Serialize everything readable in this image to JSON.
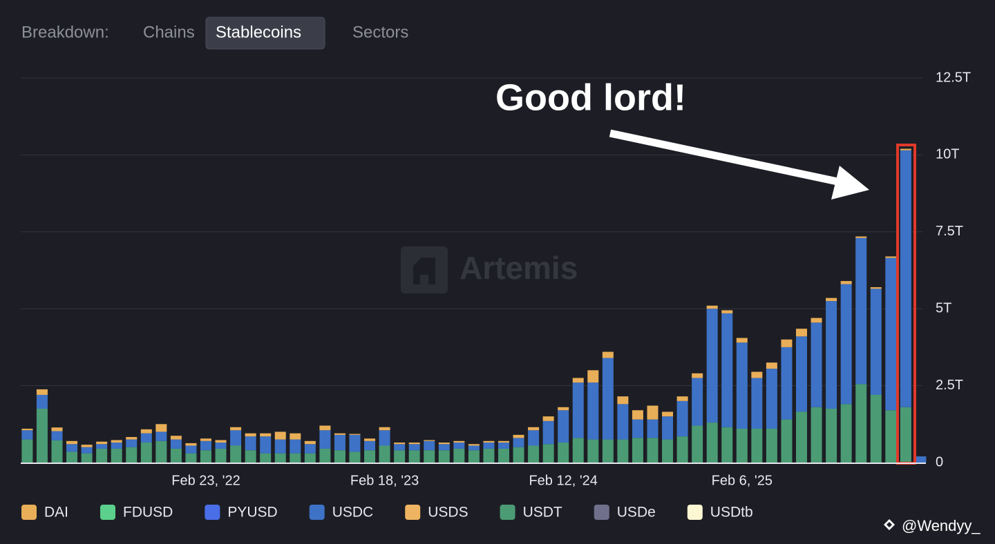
{
  "breakdown": {
    "label": "Breakdown:",
    "tabs": [
      "Chains",
      "Stablecoins",
      "Sectors"
    ],
    "active": 1
  },
  "watermarks": {
    "center": "Artemis",
    "corner": "@Wendyy_"
  },
  "chart_data": {
    "type": "stacked-bar",
    "annotation": "Good lord!",
    "categories": [
      null,
      null,
      null,
      null,
      null,
      null,
      null,
      null,
      null,
      null,
      null,
      null,
      "Feb 23, '22",
      null,
      null,
      null,
      null,
      null,
      null,
      null,
      null,
      null,
      null,
      null,
      "Feb 18, '23",
      null,
      null,
      null,
      null,
      null,
      null,
      null,
      null,
      null,
      null,
      null,
      "Feb 12, '24",
      null,
      null,
      null,
      null,
      null,
      null,
      null,
      null,
      null,
      null,
      null,
      "Feb 6, '25",
      null,
      null,
      null,
      null,
      null,
      null,
      null,
      null,
      null,
      null,
      null,
      null
    ],
    "ylim": [
      0,
      12.5
    ],
    "yticks": [
      0,
      {
        "value": 2.5,
        "label": "2.5T"
      },
      {
        "value": 5,
        "label": "5T"
      },
      {
        "value": 7.5,
        "label": "7.5T"
      },
      {
        "value": 10,
        "label": "10T"
      },
      {
        "value": 12.5,
        "label": "12.5T"
      }
    ],
    "grid": true,
    "legend": "bottom",
    "series": [
      {
        "name": "DAI",
        "color": "#e9ae58",
        "values": [
          0.05,
          0.18,
          0.12,
          0.1,
          0.08,
          0.08,
          0.08,
          0.08,
          0.13,
          0.25,
          0.12,
          0.08,
          0.08,
          0.08,
          0.1,
          0.1,
          0.1,
          0.25,
          0.2,
          0.1,
          0.15,
          0.05,
          0.03,
          0.08,
          0.1,
          0.05,
          0.05,
          0.03,
          0.05,
          0.05,
          0.05,
          0.05,
          0.05,
          0.1,
          0.1,
          0.15,
          0.1,
          0.15,
          0.4,
          0.2,
          0.25,
          0.3,
          0.45,
          0.15,
          0.15,
          0.15,
          0.1,
          0.1,
          0.15,
          0.2,
          0.2,
          0.25,
          0.25,
          0.15,
          0.1,
          0.1,
          0.05,
          0.05,
          0.05,
          0.05,
          0
        ]
      },
      {
        "name": "FDUSD",
        "color": "#5bd08c",
        "values": [
          0,
          0,
          0,
          0,
          0,
          0,
          0,
          0,
          0,
          0,
          0,
          0,
          0,
          0,
          0,
          0,
          0,
          0,
          0,
          0,
          0,
          0,
          0,
          0,
          0,
          0,
          0,
          0,
          0,
          0,
          0,
          0,
          0,
          0,
          0,
          0,
          0,
          0,
          0,
          0,
          0,
          0,
          0,
          0,
          0,
          0,
          0,
          0,
          0,
          0,
          0,
          0,
          0,
          0,
          0,
          0,
          0,
          0,
          0,
          0,
          0
        ]
      },
      {
        "name": "PYUSD",
        "color": "#4a6ee8",
        "values": [
          0,
          0,
          0,
          0,
          0,
          0,
          0,
          0,
          0,
          0,
          0,
          0,
          0,
          0,
          0,
          0,
          0,
          0,
          0,
          0,
          0,
          0,
          0,
          0,
          0,
          0,
          0,
          0,
          0,
          0,
          0,
          0,
          0,
          0,
          0,
          0,
          0,
          0,
          0,
          0,
          0,
          0,
          0,
          0,
          0,
          0,
          0,
          0,
          0,
          0,
          0,
          0,
          0,
          0,
          0,
          0,
          0,
          0,
          0,
          0,
          0
        ]
      },
      {
        "name": "USDC",
        "color": "#3d72c6",
        "values": [
          0.3,
          0.45,
          0.3,
          0.25,
          0.2,
          0.15,
          0.2,
          0.25,
          0.3,
          0.3,
          0.3,
          0.25,
          0.3,
          0.2,
          0.5,
          0.45,
          0.55,
          0.45,
          0.45,
          0.3,
          0.6,
          0.5,
          0.55,
          0.3,
          0.5,
          0.2,
          0.2,
          0.3,
          0.2,
          0.2,
          0.15,
          0.2,
          0.2,
          0.3,
          0.5,
          0.75,
          1.05,
          1.8,
          1.85,
          2.65,
          1.15,
          0.6,
          0.6,
          0.75,
          1.15,
          1.55,
          3.7,
          3.7,
          2.8,
          1.65,
          1.95,
          2.35,
          2.45,
          2.75,
          3.5,
          3.9,
          4.75,
          3.45,
          4.95,
          8.35,
          0.2
        ]
      },
      {
        "name": "USDS",
        "color": "#efb462",
        "values": [
          0,
          0,
          0,
          0,
          0,
          0,
          0,
          0,
          0,
          0,
          0,
          0,
          0,
          0,
          0,
          0,
          0,
          0,
          0,
          0,
          0,
          0,
          0,
          0,
          0,
          0,
          0,
          0,
          0,
          0,
          0,
          0,
          0,
          0,
          0,
          0,
          0,
          0,
          0,
          0,
          0,
          0,
          0,
          0,
          0,
          0,
          0,
          0,
          0,
          0,
          0,
          0,
          0,
          0,
          0,
          0,
          0,
          0,
          0,
          0,
          0
        ]
      },
      {
        "name": "USDT",
        "color": "#4b9b74",
        "values": [
          0.75,
          1.75,
          0.72,
          0.35,
          0.3,
          0.45,
          0.45,
          0.5,
          0.65,
          0.7,
          0.45,
          0.3,
          0.4,
          0.45,
          0.55,
          0.4,
          0.3,
          0.3,
          0.3,
          0.3,
          0.45,
          0.4,
          0.35,
          0.4,
          0.55,
          0.4,
          0.4,
          0.4,
          0.4,
          0.45,
          0.4,
          0.45,
          0.45,
          0.5,
          0.55,
          0.6,
          0.65,
          0.8,
          0.75,
          0.75,
          0.75,
          0.8,
          0.8,
          0.75,
          0.85,
          1.2,
          1.3,
          1.15,
          1.1,
          1.1,
          1.1,
          1.4,
          1.65,
          1.8,
          1.75,
          1.9,
          2.55,
          2.2,
          1.7,
          1.8,
          0
        ]
      },
      {
        "name": "USDe",
        "color": "#70708c",
        "values": [
          0,
          0,
          0,
          0,
          0,
          0,
          0,
          0,
          0,
          0,
          0,
          0,
          0,
          0,
          0,
          0,
          0,
          0,
          0,
          0,
          0,
          0,
          0,
          0,
          0,
          0,
          0,
          0,
          0,
          0,
          0,
          0,
          0,
          0,
          0,
          0,
          0,
          0,
          0,
          0,
          0,
          0,
          0,
          0,
          0,
          0,
          0,
          0,
          0,
          0,
          0,
          0,
          0,
          0,
          0,
          0,
          0,
          0,
          0,
          0,
          0
        ]
      },
      {
        "name": "USDtb",
        "color": "#fcf6d2",
        "values": [
          0,
          0,
          0,
          0,
          0,
          0,
          0,
          0,
          0,
          0,
          0,
          0,
          0,
          0,
          0,
          0,
          0,
          0,
          0,
          0,
          0,
          0,
          0,
          0,
          0,
          0,
          0,
          0,
          0,
          0,
          0,
          0,
          0,
          0,
          0,
          0,
          0,
          0,
          0,
          0,
          0,
          0,
          0,
          0,
          0,
          0,
          0,
          0,
          0,
          0,
          0,
          0,
          0,
          0,
          0,
          0,
          0,
          0,
          0,
          0,
          0
        ]
      }
    ]
  }
}
